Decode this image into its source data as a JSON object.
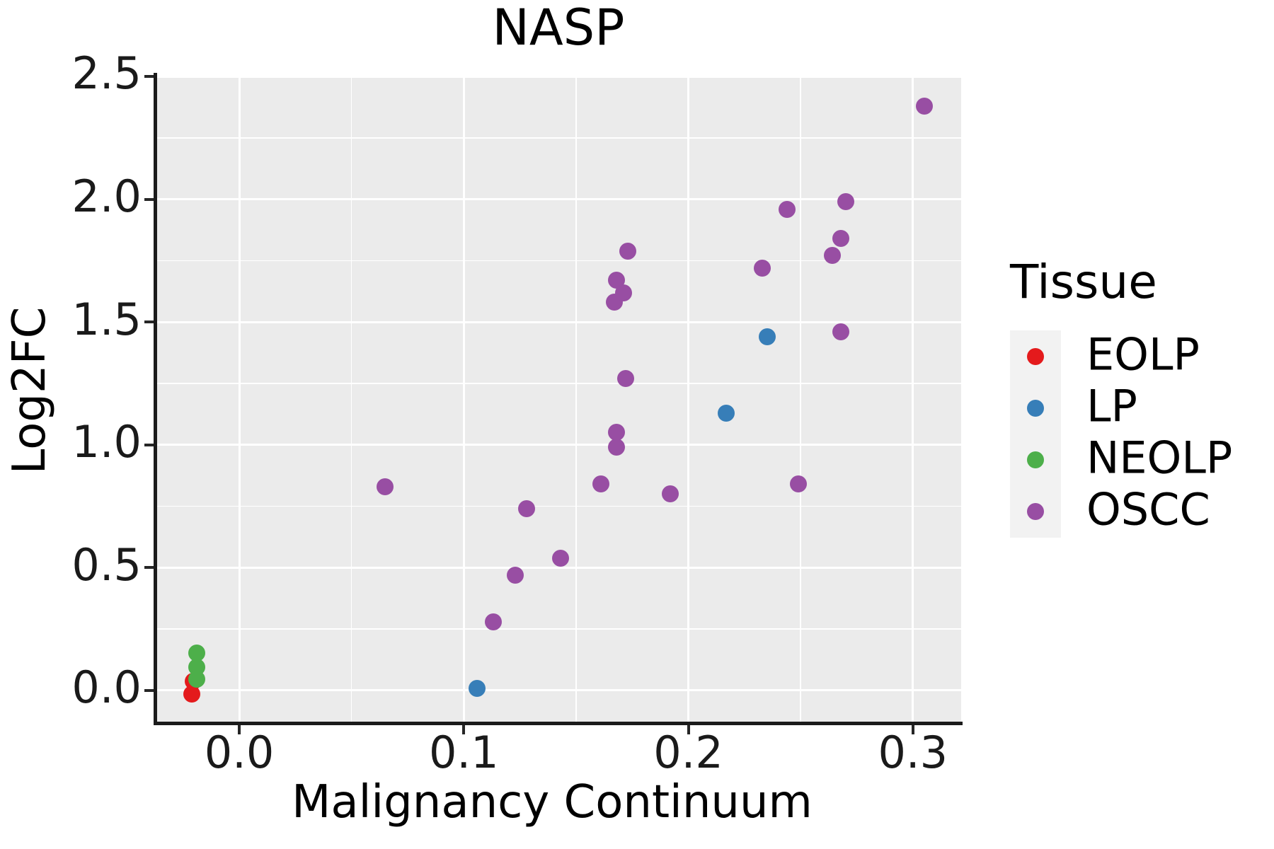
{
  "chart_data": {
    "type": "scatter",
    "title": "NASP",
    "xlabel": "Malignancy Continuum",
    "ylabel": "Log2FC",
    "xlim": [
      -0.0372,
      0.3215
    ],
    "ylim": [
      -0.1325,
      2.503
    ],
    "x_ticks": [
      0.0,
      0.1,
      0.2,
      0.3
    ],
    "x_tick_labels": [
      "0.0",
      "0.1",
      "0.2",
      "0.3"
    ],
    "x_minor_ticks": [
      0.05,
      0.15,
      0.25
    ],
    "y_ticks": [
      0.0,
      0.5,
      1.0,
      1.5,
      2.0,
      2.5
    ],
    "y_tick_labels": [
      "0.0",
      "0.5",
      "1.0",
      "1.5",
      "2.0",
      "2.5"
    ],
    "y_minor_ticks": [
      0.25,
      0.75,
      1.25,
      1.75,
      2.25
    ],
    "grid": true,
    "legend_title": "Tissue",
    "legend_position": "right",
    "series": [
      {
        "name": "EOLP",
        "color": "#E41A1C",
        "points": [
          [
            -0.0205,
            0.038
          ],
          [
            -0.021,
            -0.013
          ]
        ]
      },
      {
        "name": "LP",
        "color": "#377EB8",
        "points": [
          [
            0.106,
            0.01
          ],
          [
            0.217,
            1.13
          ],
          [
            0.235,
            1.44
          ]
        ]
      },
      {
        "name": "NEOLP",
        "color": "#4DAF4A",
        "points": [
          [
            -0.019,
            0.153
          ],
          [
            -0.019,
            0.095
          ],
          [
            -0.019,
            0.045
          ]
        ]
      },
      {
        "name": "OSCC",
        "color": "#984EA3",
        "points": [
          [
            0.065,
            0.83
          ],
          [
            0.113,
            0.28
          ],
          [
            0.123,
            0.47
          ],
          [
            0.128,
            0.74
          ],
          [
            0.143,
            0.54
          ],
          [
            0.161,
            0.84
          ],
          [
            0.167,
            1.58
          ],
          [
            0.168,
            1.67
          ],
          [
            0.168,
            1.05
          ],
          [
            0.168,
            0.99
          ],
          [
            0.171,
            1.62
          ],
          [
            0.172,
            1.27
          ],
          [
            0.173,
            1.79
          ],
          [
            0.192,
            0.8
          ],
          [
            0.233,
            1.72
          ],
          [
            0.244,
            1.96
          ],
          [
            0.249,
            0.84
          ],
          [
            0.264,
            1.77
          ],
          [
            0.268,
            1.84
          ],
          [
            0.268,
            1.46
          ],
          [
            0.27,
            1.99
          ],
          [
            0.305,
            2.38
          ]
        ]
      }
    ],
    "colors": {
      "panel_bg": "#EBEBEB",
      "grid": "#FFFFFF",
      "legend_key_bg": "#F2F2F2",
      "spine": "#1b1b1b",
      "tick_text": "#1a1a1a"
    }
  }
}
